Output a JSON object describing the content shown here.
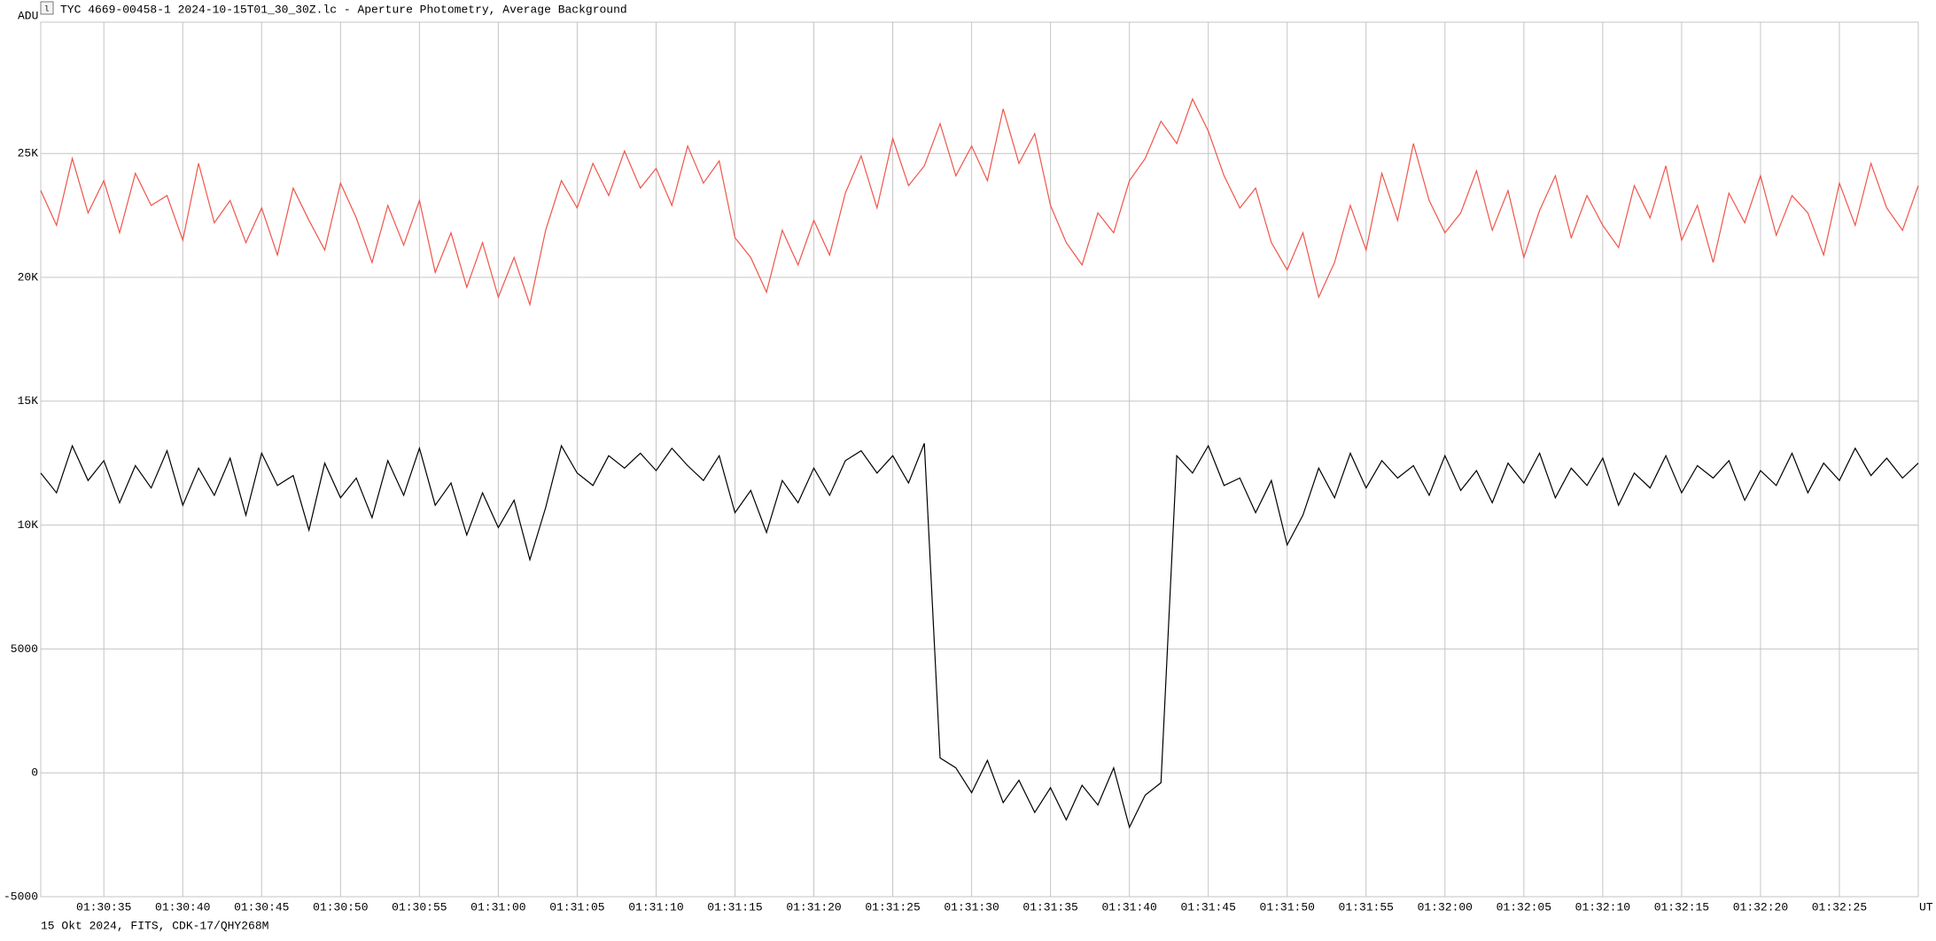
{
  "chart_data": {
    "type": "line",
    "title": "TYC 4669-00458-1 2024-10-15T01_30_30Z.lc - Aperture Photometry, Average Background",
    "ylabel": "ADU",
    "xlabel": "UT",
    "footer": "15 Okt 2024, FITS, CDK-17/QHY268M",
    "grid": true,
    "x": [
      "01:30:31",
      "01:30:32",
      "01:30:33",
      "01:30:34",
      "01:30:35",
      "01:30:36",
      "01:30:37",
      "01:30:38",
      "01:30:39",
      "01:30:40",
      "01:30:41",
      "01:30:42",
      "01:30:43",
      "01:30:44",
      "01:30:45",
      "01:30:46",
      "01:30:47",
      "01:30:48",
      "01:30:49",
      "01:30:50",
      "01:30:51",
      "01:30:52",
      "01:30:53",
      "01:30:54",
      "01:30:55",
      "01:30:56",
      "01:30:57",
      "01:30:58",
      "01:30:59",
      "01:31:00",
      "01:31:01",
      "01:31:02",
      "01:31:03",
      "01:31:04",
      "01:31:05",
      "01:31:06",
      "01:31:07",
      "01:31:08",
      "01:31:09",
      "01:31:10",
      "01:31:11",
      "01:31:12",
      "01:31:13",
      "01:31:14",
      "01:31:15",
      "01:31:16",
      "01:31:17",
      "01:31:18",
      "01:31:19",
      "01:31:20",
      "01:31:21",
      "01:31:22",
      "01:31:23",
      "01:31:24",
      "01:31:25",
      "01:31:26",
      "01:31:27",
      "01:31:28",
      "01:31:29",
      "01:31:30",
      "01:31:31",
      "01:31:32",
      "01:31:33",
      "01:31:34",
      "01:31:35",
      "01:31:36",
      "01:31:37",
      "01:31:38",
      "01:31:39",
      "01:31:40",
      "01:31:41",
      "01:31:42",
      "01:31:43",
      "01:31:44",
      "01:31:45",
      "01:31:46",
      "01:31:47",
      "01:31:48",
      "01:31:49",
      "01:31:50",
      "01:31:51",
      "01:31:52",
      "01:31:53",
      "01:31:54",
      "01:31:55",
      "01:31:56",
      "01:31:57",
      "01:31:58",
      "01:31:59",
      "01:32:00",
      "01:32:01",
      "01:32:02",
      "01:32:03",
      "01:32:04",
      "01:32:05",
      "01:32:06",
      "01:32:07",
      "01:32:08",
      "01:32:09",
      "01:32:10",
      "01:32:11",
      "01:32:12",
      "01:32:13",
      "01:32:14",
      "01:32:15",
      "01:32:16",
      "01:32:17",
      "01:32:18",
      "01:32:19",
      "01:32:20",
      "01:32:21",
      "01:32:22",
      "01:32:23",
      "01:32:24",
      "01:32:25",
      "01:32:26",
      "01:32:27",
      "01:32:28",
      "01:32:29",
      "01:32:30"
    ],
    "series": [
      {
        "color": "#f0554a",
        "values": [
          23500,
          22100,
          24800,
          22600,
          23900,
          21800,
          24200,
          22900,
          23300,
          21500,
          24600,
          22200,
          23100,
          21400,
          22800,
          20900,
          23600,
          22300,
          21100,
          23800,
          22400,
          20600,
          22900,
          21300,
          23100,
          20200,
          21800,
          19600,
          21400,
          19200,
          20800,
          18900,
          21900,
          23900,
          22800,
          24600,
          23300,
          25100,
          23600,
          24400,
          22900,
          25300,
          23800,
          24700,
          21600,
          20800,
          19400,
          21900,
          20500,
          22300,
          20900,
          23400,
          24900,
          22800,
          25600,
          23700,
          24500,
          26200,
          24100,
          25300,
          23900,
          26800,
          24600,
          25800,
          22900,
          21400,
          20500,
          22600,
          21800,
          23900,
          24800,
          26300,
          25400,
          27200,
          25900,
          24100,
          22800,
          23600,
          21400,
          20300,
          21800,
          19200,
          20600,
          22900,
          21100,
          24200,
          22300,
          25400,
          23100,
          21800,
          22600,
          24300,
          21900,
          23500,
          20800,
          22700,
          24100,
          21600,
          23300,
          22100,
          21200,
          23700,
          22400,
          24500,
          21500,
          22900,
          20600,
          23400,
          22200,
          24100,
          21700,
          23300,
          22600,
          20900,
          23800,
          22100,
          24600,
          22800,
          21900,
          23700
        ]
      },
      {
        "color": "#000000",
        "values": [
          12100,
          11300,
          13200,
          11800,
          12600,
          10900,
          12400,
          11500,
          13000,
          10800,
          12300,
          11200,
          12700,
          10400,
          12900,
          11600,
          12000,
          9800,
          12500,
          11100,
          11900,
          10300,
          12600,
          11200,
          13100,
          10800,
          11700,
          9600,
          11300,
          9900,
          11000,
          8600,
          10700,
          13200,
          12100,
          11600,
          12800,
          12300,
          12900,
          12200,
          13100,
          12400,
          11800,
          12800,
          10500,
          11400,
          9700,
          11800,
          10900,
          12300,
          11200,
          12600,
          13000,
          12100,
          12800,
          11700,
          13300,
          600,
          200,
          -800,
          500,
          -1200,
          -300,
          -1600,
          -600,
          -1900,
          -500,
          -1300,
          200,
          -2200,
          -900,
          -400,
          12800,
          12100,
          13200,
          11600,
          11900,
          10500,
          11800,
          9200,
          10400,
          12300,
          11100,
          12900,
          11500,
          12600,
          11900,
          12400,
          11200,
          12800,
          11400,
          12200,
          10900,
          12500,
          11700,
          12900,
          11100,
          12300,
          11600,
          12700,
          10800,
          12100,
          11500,
          12800,
          11300,
          12400,
          11900,
          12600,
          11000,
          12200,
          11600,
          12900,
          11300,
          12500,
          11800,
          13100,
          12000,
          12700,
          11900,
          12500
        ]
      }
    ],
    "xlim": [
      "01:30:31",
      "01:32:30"
    ],
    "xticks": [
      "01:30:35",
      "01:30:40",
      "01:30:45",
      "01:30:50",
      "01:30:55",
      "01:31:00",
      "01:31:05",
      "01:31:10",
      "01:31:15",
      "01:31:20",
      "01:31:25",
      "01:31:30",
      "01:31:35",
      "01:31:40",
      "01:31:45",
      "01:31:50",
      "01:31:55",
      "01:32:00",
      "01:32:05",
      "01:32:10",
      "01:32:15",
      "01:32:20",
      "01:32:25"
    ],
    "ylim": [
      -5000,
      30300
    ],
    "yticks": [
      -5000,
      0,
      5000,
      {
        "value": 10000,
        "label": "10K"
      },
      {
        "value": 15000,
        "label": "15K"
      },
      {
        "value": 20000,
        "label": "20K"
      },
      {
        "value": 25000,
        "label": "25K"
      }
    ]
  }
}
